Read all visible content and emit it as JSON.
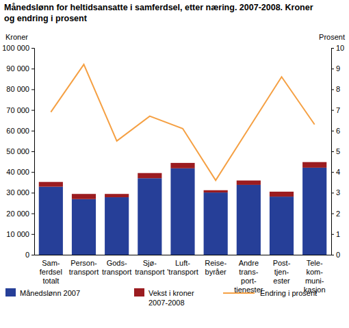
{
  "chart_data": {
    "type": "bar",
    "title": "Månedslønn for heltidsansatte i samferdsel, etter næring. 2007-2008. Kroner\nog endring i prosent",
    "y_label": "Kroner",
    "y2_label": "Prosent",
    "categories": [
      "Sam-\nferdsel\ntotalt",
      "Person-\ntransport",
      "Gods-\ntransport",
      "Sjø-\ntransport",
      "Luft-\n'transport",
      "Reise-\nbyråer",
      "Andre\ntrans-\nport-\ntjenester",
      "Post-\ntjen-\nester",
      "Tele-\nkom-\nmuni-\nkasjon"
    ],
    "stacked": true,
    "grid": false,
    "legend": "bottom",
    "series": [
      {
        "name": "Månedslønn 2007",
        "color": "#263f98",
        "values": [
          32900,
          26900,
          27800,
          37000,
          41800,
          30100,
          33800,
          28100,
          42100
        ]
      },
      {
        "name": "Vekst i kroner\n2007-2008",
        "color": "#9b1c20",
        "values": [
          2300,
          2500,
          1600,
          2500,
          2600,
          1100,
          2100,
          2400,
          2700
        ]
      },
      {
        "name": "Endring i prosent",
        "type": "line",
        "axis": "y2",
        "color": "#f5a043",
        "values": [
          6.9,
          9.2,
          5.5,
          6.7,
          6.1,
          3.6,
          6.1,
          8.6,
          6.3
        ]
      }
    ],
    "ylim": [
      0,
      100000
    ],
    "yticks": [
      0,
      {
        "value": 10000,
        "label": "10 000"
      },
      {
        "value": 20000,
        "label": "20 000"
      },
      {
        "value": 30000,
        "label": "30 000"
      },
      {
        "value": 40000,
        "label": "40 000"
      },
      {
        "value": 50000,
        "label": "50 000"
      },
      {
        "value": 60000,
        "label": "60 000"
      },
      {
        "value": 70000,
        "label": "70 000"
      },
      {
        "value": 80000,
        "label": "80 000"
      },
      {
        "value": 90000,
        "label": "90 000"
      },
      {
        "value": 100000,
        "label": "100 000"
      }
    ],
    "y2lim": [
      0,
      10
    ],
    "y2ticks": [
      0,
      1,
      2,
      3,
      4,
      5,
      6,
      7,
      8,
      9,
      10
    ]
  }
}
